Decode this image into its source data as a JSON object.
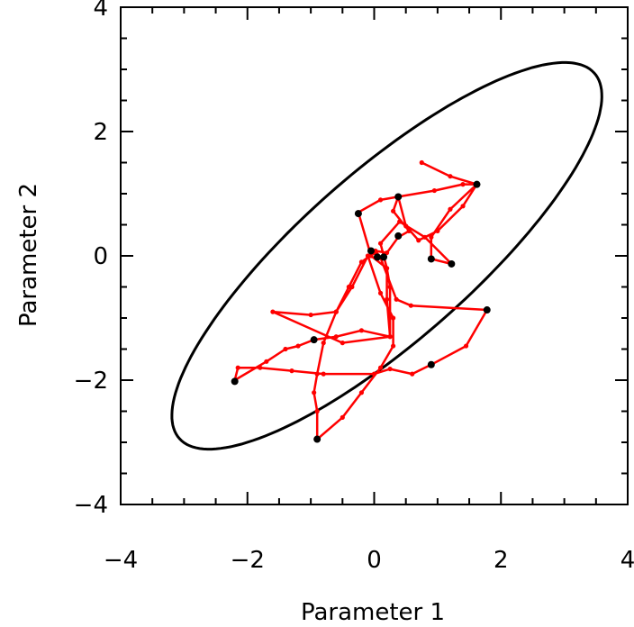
{
  "chart_data": {
    "type": "scatter",
    "title": "",
    "xlabel": "Parameter 1",
    "ylabel": "Parameter 2",
    "xlim": [
      -4,
      4
    ],
    "ylim": [
      -4,
      4
    ],
    "xticks": [
      "−4",
      "−2",
      "0",
      "2",
      "4"
    ],
    "yticks": [
      "−4",
      "−2",
      "0",
      "2",
      "4"
    ],
    "xtick_values": [
      -4,
      -2,
      0,
      2,
      4
    ],
    "ytick_values": [
      -4,
      -2,
      0,
      2,
      4
    ],
    "grid": false,
    "ellipse": {
      "center": [
        0.2,
        0.0
      ],
      "semi_major": 4.4,
      "semi_minor": 1.35,
      "angle_deg": 42,
      "color": "#000000"
    },
    "trajectory": {
      "color": "#ff0000",
      "points": [
        [
          0.75,
          1.5
        ],
        [
          1.2,
          1.28
        ],
        [
          1.62,
          1.15
        ],
        [
          1.4,
          0.8
        ],
        [
          1.0,
          0.4
        ],
        [
          0.7,
          0.25
        ],
        [
          0.5,
          0.48
        ],
        [
          0.38,
          0.95
        ],
        [
          0.3,
          0.72
        ],
        [
          0.55,
          0.4
        ],
        [
          0.38,
          0.3
        ],
        [
          0.2,
          0.05
        ],
        [
          0.02,
          0.08
        ],
        [
          0.1,
          -0.03
        ],
        [
          0.35,
          -0.7
        ],
        [
          0.58,
          -0.8
        ],
        [
          1.78,
          -0.87
        ],
        [
          1.45,
          -1.45
        ],
        [
          0.9,
          -1.75
        ],
        [
          0.6,
          -1.9
        ],
        [
          0.25,
          -1.82
        ],
        [
          0.0,
          -1.9
        ],
        [
          -0.8,
          -1.9
        ],
        [
          -1.3,
          -1.85
        ],
        [
          -1.8,
          -1.8
        ],
        [
          -2.15,
          -1.8
        ],
        [
          -2.2,
          -2.0
        ],
        [
          -1.7,
          -1.7
        ],
        [
          -1.4,
          -1.5
        ],
        [
          -1.2,
          -1.45
        ],
        [
          -0.95,
          -1.35
        ],
        [
          -0.6,
          -1.3
        ],
        [
          -0.2,
          -1.2
        ],
        [
          0.25,
          -1.3
        ],
        [
          0.25,
          -0.5
        ],
        [
          0.2,
          -0.2
        ],
        [
          -0.05,
          0.0
        ],
        [
          -0.25,
          0.7
        ],
        [
          0.1,
          0.9
        ],
        [
          0.38,
          0.95
        ],
        [
          0.95,
          1.05
        ],
        [
          1.4,
          1.15
        ],
        [
          1.62,
          1.15
        ],
        [
          1.2,
          0.75
        ],
        [
          0.9,
          0.3
        ],
        [
          0.9,
          -0.05
        ],
        [
          1.22,
          -0.13
        ],
        [
          0.8,
          0.3
        ],
        [
          0.4,
          0.55
        ],
        [
          0.1,
          0.2
        ],
        [
          0.2,
          -0.2
        ],
        [
          0.2,
          -0.7
        ],
        [
          0.25,
          -1.3
        ],
        [
          -0.5,
          -1.4
        ],
        [
          -1.6,
          -0.9
        ],
        [
          -1.0,
          -0.95
        ],
        [
          -0.6,
          -0.9
        ],
        [
          -0.35,
          -0.5
        ],
        [
          -0.1,
          0.0
        ],
        [
          0.1,
          -0.6
        ],
        [
          0.3,
          -1.0
        ],
        [
          0.3,
          -1.45
        ],
        [
          0.1,
          -1.8
        ],
        [
          -0.2,
          -2.2
        ],
        [
          -0.5,
          -2.6
        ],
        [
          -0.9,
          -2.95
        ],
        [
          -0.9,
          -2.5
        ],
        [
          -0.95,
          -2.2
        ],
        [
          -0.9,
          -1.9
        ],
        [
          -0.8,
          -1.4
        ],
        [
          -0.6,
          -0.9
        ],
        [
          -0.4,
          -0.5
        ],
        [
          -0.2,
          -0.1
        ],
        [
          0.0,
          0.05
        ]
      ],
      "marker_color": "#ff0000"
    },
    "highlighted_points": {
      "color": "#000000",
      "points": [
        [
          1.62,
          1.15
        ],
        [
          0.38,
          0.95
        ],
        [
          -0.25,
          0.68
        ],
        [
          0.38,
          0.32
        ],
        [
          -0.05,
          0.08
        ],
        [
          0.05,
          -0.02
        ],
        [
          0.15,
          -0.02
        ],
        [
          0.9,
          -0.05
        ],
        [
          1.22,
          -0.13
        ],
        [
          1.78,
          -0.87
        ],
        [
          -0.95,
          -1.35
        ],
        [
          0.9,
          -1.75
        ],
        [
          -2.2,
          -2.02
        ],
        [
          -0.9,
          -2.95
        ]
      ]
    }
  }
}
